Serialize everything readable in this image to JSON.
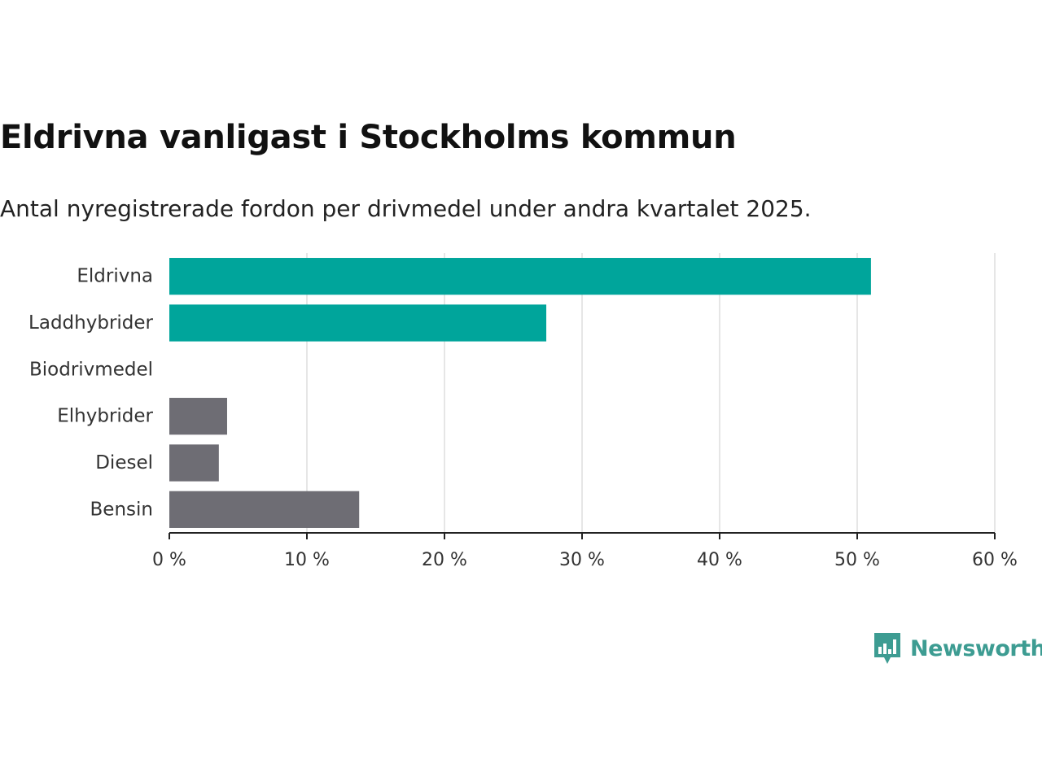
{
  "chart_data": {
    "type": "bar",
    "orientation": "horizontal",
    "title": "Eldrivna vanligast i Stockholms kommun",
    "subtitle": "Antal nyregistrerade fordon per drivmedel under andra kvartalet 2025.",
    "categories": [
      "Eldrivna",
      "Laddhybrider",
      "Biodrivmedel",
      "Elhybrider",
      "Diesel",
      "Bensin"
    ],
    "values": [
      51.0,
      27.4,
      0,
      4.2,
      3.6,
      13.8
    ],
    "bar_colors": [
      "#00a59b",
      "#00a59b",
      "#00a59b",
      "#6e6d74",
      "#6e6d74",
      "#6e6d74"
    ],
    "xlim": [
      0,
      60
    ],
    "xticks": [
      0,
      10,
      20,
      30,
      40,
      50,
      60
    ],
    "xtick_labels": [
      "0 %",
      "10 %",
      "20 %",
      "30 %",
      "40 %",
      "50 %",
      "60 %"
    ],
    "grid": "vertical",
    "xlabel": "",
    "ylabel": ""
  },
  "brand": {
    "name": "Newsworthy",
    "color": "#3d9c92",
    "icon": "bar-chart-speech-bubble-icon"
  }
}
